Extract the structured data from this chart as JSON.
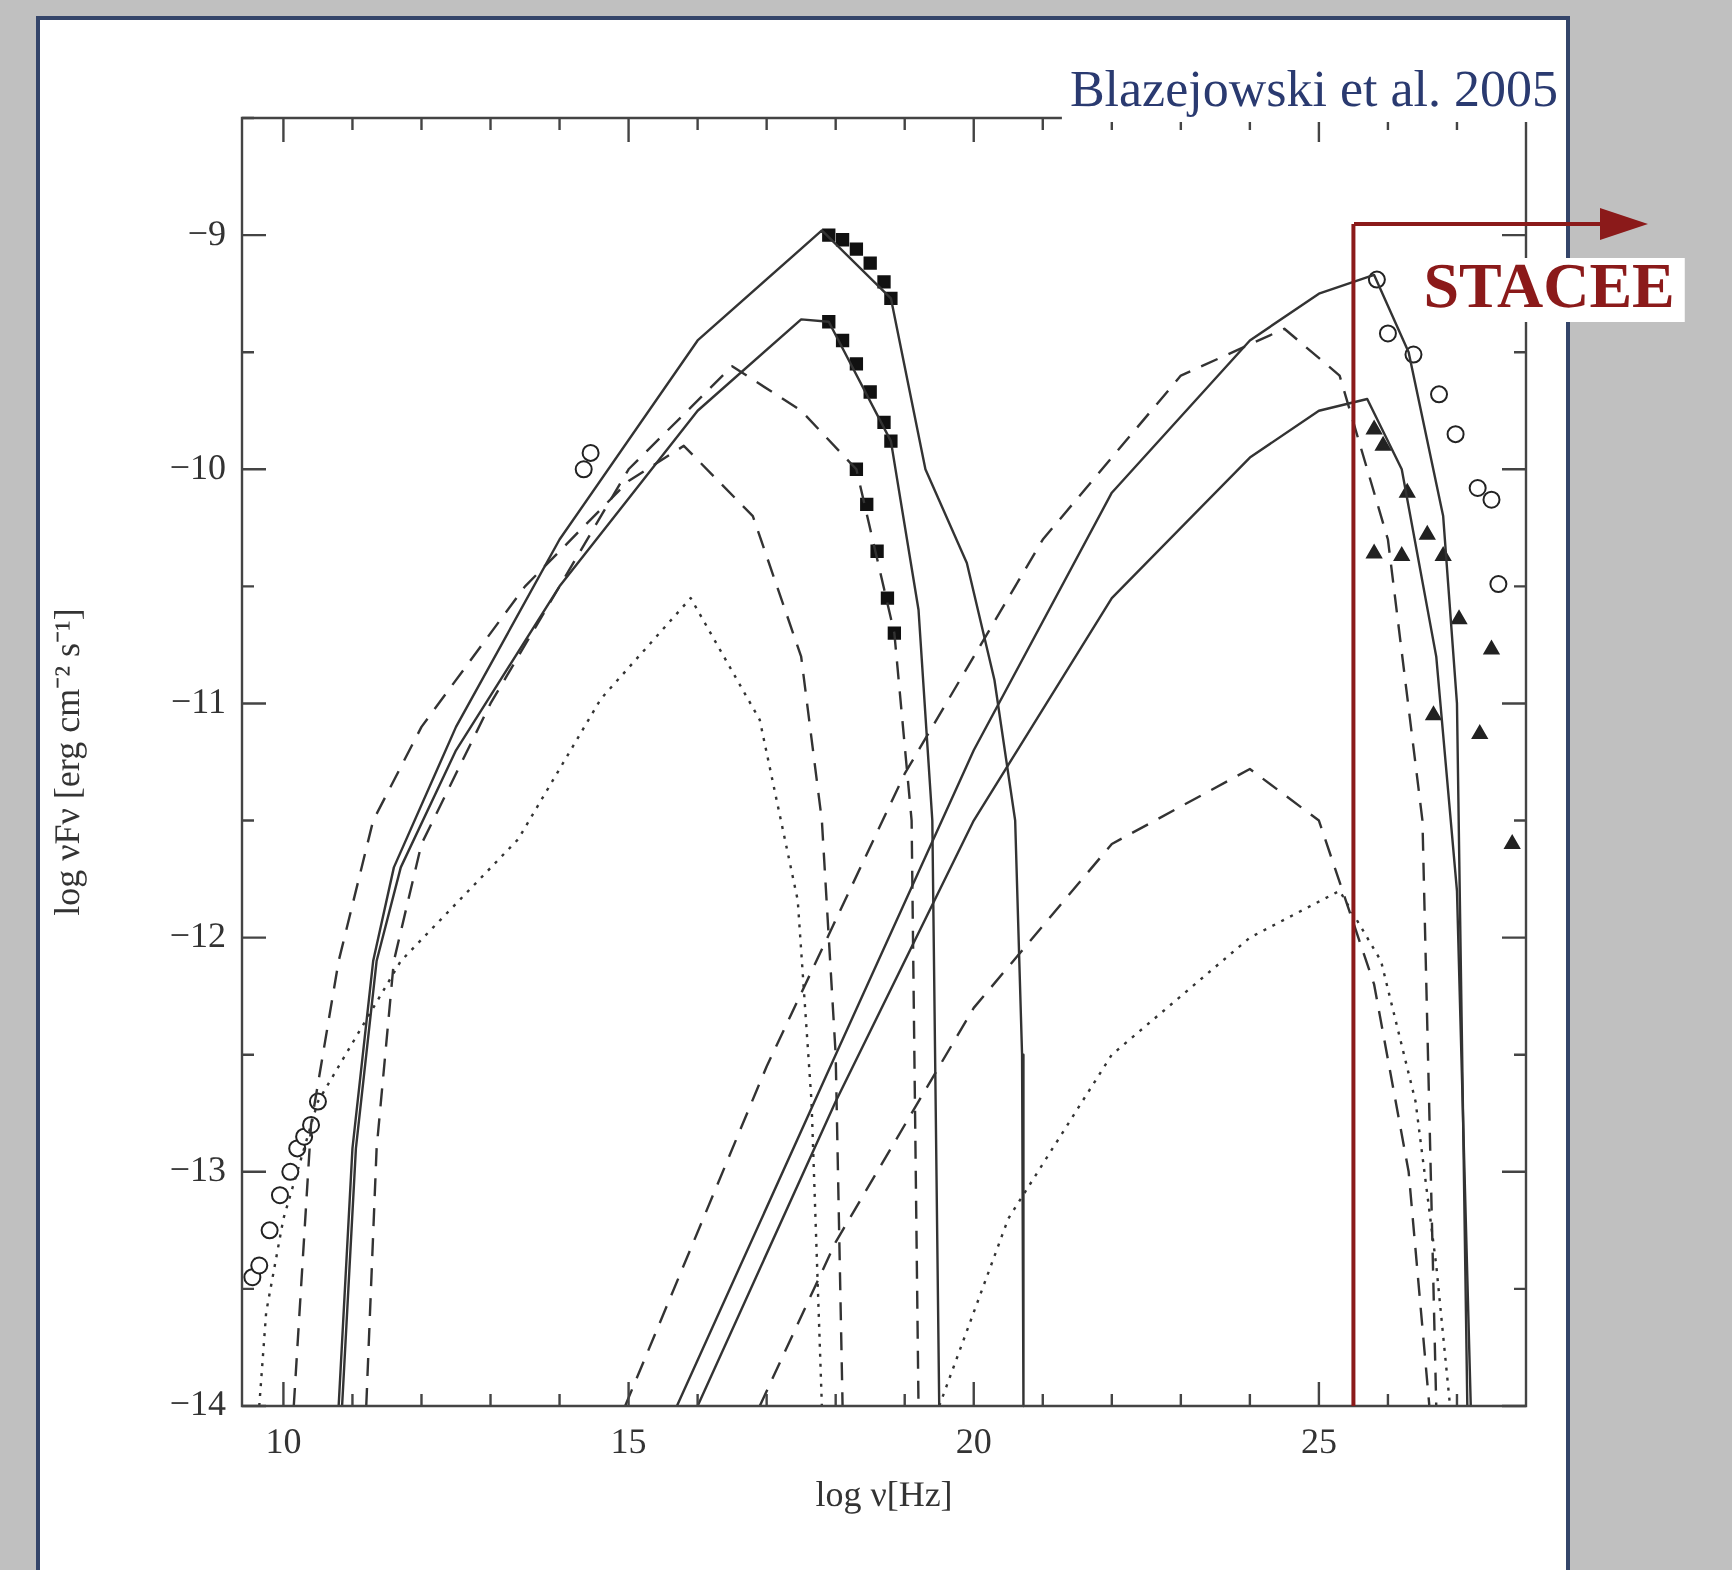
{
  "chart_data": {
    "type": "line",
    "xlabel": "log ν[Hz]",
    "ylabel": "log νFν [erg cm⁻² s⁻¹]",
    "annotations": [
      "Blazejowski et al. 2005"
    ],
    "xlim": [
      9.4,
      28
    ],
    "ylim": [
      -14,
      -8.5
    ],
    "xticks": [
      {
        "value": 10,
        "label": "10"
      },
      {
        "value": 11,
        "label": null
      },
      {
        "value": 12,
        "label": null
      },
      {
        "value": 13,
        "label": null
      },
      {
        "value": 14,
        "label": null
      },
      {
        "value": 15,
        "label": "15"
      },
      {
        "value": 16,
        "label": null
      },
      {
        "value": 17,
        "label": null
      },
      {
        "value": 18,
        "label": null
      },
      {
        "value": 19,
        "label": null
      },
      {
        "value": 20,
        "label": "20"
      },
      {
        "value": 21,
        "label": null
      },
      {
        "value": 22,
        "label": null
      },
      {
        "value": 23,
        "label": null
      },
      {
        "value": 24,
        "label": null
      },
      {
        "value": 25,
        "label": "25"
      },
      {
        "value": 26,
        "label": null
      },
      {
        "value": 27,
        "label": null
      }
    ],
    "yticks": [
      {
        "value": -14,
        "label": "−14"
      },
      {
        "value": -13.5,
        "label": null
      },
      {
        "value": -13,
        "label": "−13"
      },
      {
        "value": -12.5,
        "label": null
      },
      {
        "value": -12,
        "label": "−12"
      },
      {
        "value": -11.5,
        "label": null
      },
      {
        "value": -11,
        "label": "−11"
      },
      {
        "value": -10.5,
        "label": null
      },
      {
        "value": -10,
        "label": "−10"
      },
      {
        "value": -9.5,
        "label": null
      },
      {
        "value": -9,
        "label": "−9"
      },
      {
        "value": -8.5,
        "label": null
      }
    ],
    "ref_lines": [
      {
        "axis": "x",
        "value": 25.5,
        "label": "STACEE",
        "color": "#8b1a1a"
      }
    ],
    "series": [
      {
        "type": "line",
        "line_style": "solid",
        "marker": "none",
        "color": "#333333",
        "x": [
          10.8,
          11.0,
          11.3,
          11.6,
          12.5,
          14,
          16,
          17.8,
          18.8,
          19.3,
          19.9,
          20.3,
          20.6,
          20.7,
          20.72
        ],
        "values": [
          -14,
          -12.9,
          -12.1,
          -11.7,
          -11.1,
          -10.3,
          -9.45,
          -8.98,
          -9.27,
          -10.0,
          -10.4,
          -10.9,
          -11.5,
          -12.5,
          -14
        ]
      },
      {
        "type": "line",
        "line_style": "solid",
        "marker": "none",
        "color": "#333333",
        "x": [
          10.85,
          11.05,
          11.35,
          11.7,
          12.5,
          14,
          16,
          17.5,
          17.9,
          18.8,
          19.2,
          19.4,
          19.5
        ],
        "values": [
          -14,
          -12.9,
          -12.1,
          -11.7,
          -11.2,
          -10.5,
          -9.75,
          -9.36,
          -9.37,
          -9.88,
          -10.6,
          -11.5,
          -14
        ]
      },
      {
        "type": "line",
        "line_style": "dashed",
        "marker": "none",
        "color": "#333333",
        "x": [
          11.2,
          11.35,
          11.6,
          12,
          13,
          15,
          16.5,
          17.5,
          18.3,
          18.85,
          19.1,
          19.2
        ],
        "values": [
          -14,
          -12.9,
          -12.1,
          -11.6,
          -11.0,
          -10.0,
          -9.56,
          -9.75,
          -10.0,
          -10.7,
          -11.5,
          -14
        ]
      },
      {
        "type": "line",
        "line_style": "dashed",
        "marker": "none",
        "color": "#333333",
        "x": [
          10.15,
          10.4,
          10.8,
          11.3,
          12,
          13.5,
          15,
          15.8,
          16.8,
          17.5,
          17.8,
          18.0,
          18.1
        ],
        "values": [
          -14,
          -12.8,
          -12.1,
          -11.5,
          -11.1,
          -10.5,
          -10.05,
          -9.9,
          -10.2,
          -10.8,
          -11.5,
          -12.5,
          -14
        ]
      },
      {
        "type": "line",
        "line_style": "dotted",
        "marker": "none",
        "color": "#333333",
        "x": [
          9.65,
          9.75,
          10.0,
          10.5,
          11.7,
          13.4,
          14.6,
          15.9,
          16.9,
          17.45,
          17.65,
          17.8
        ],
        "values": [
          -14,
          -13.6,
          -13.2,
          -12.7,
          -12.1,
          -11.58,
          -10.98,
          -10.55,
          -11.07,
          -11.84,
          -12.7,
          -14
        ]
      },
      {
        "type": "line",
        "line_style": "solid",
        "marker": "none",
        "color": "#333333",
        "x": [
          15.7,
          18,
          20,
          22,
          24,
          25.0,
          25.8,
          26.3,
          26.8,
          27.0,
          27.15
        ],
        "values": [
          -14,
          -12.5,
          -11.2,
          -10.1,
          -9.45,
          -9.25,
          -9.17,
          -9.5,
          -10.2,
          -11,
          -14
        ]
      },
      {
        "type": "line",
        "line_style": "solid",
        "marker": "none",
        "color": "#333333",
        "x": [
          16.0,
          18,
          20,
          22,
          24,
          25.0,
          25.7,
          26.2,
          26.7,
          27.0,
          27.2
        ],
        "values": [
          -14,
          -12.7,
          -11.5,
          -10.55,
          -9.95,
          -9.75,
          -9.7,
          -10.0,
          -10.8,
          -11.8,
          -14
        ]
      },
      {
        "type": "line",
        "line_style": "dashed",
        "marker": "none",
        "color": "#333333",
        "x": [
          14.95,
          17,
          19,
          21,
          23,
          24.5,
          25.3,
          26.0,
          26.5,
          26.7
        ],
        "values": [
          -14,
          -12.55,
          -11.3,
          -10.3,
          -9.6,
          -9.4,
          -9.6,
          -10.3,
          -11.5,
          -14
        ]
      },
      {
        "type": "line",
        "line_style": "dashed",
        "marker": "none",
        "color": "#333333",
        "x": [
          16.9,
          18,
          20,
          22,
          24.0,
          25,
          25.8,
          26.3,
          26.6
        ],
        "values": [
          -14,
          -13.3,
          -12.3,
          -11.6,
          -11.28,
          -11.5,
          -12.2,
          -13,
          -14
        ]
      },
      {
        "type": "line",
        "line_style": "dotted",
        "marker": "none",
        "color": "#333333",
        "x": [
          19.5,
          20.5,
          22,
          24,
          25.3,
          25.9,
          26.4,
          26.7,
          26.9
        ],
        "values": [
          -14,
          -13.2,
          -12.5,
          -12.0,
          -11.8,
          -12.1,
          -12.7,
          -13.4,
          -14
        ]
      },
      {
        "type": "scatter",
        "marker": "circle",
        "color": "#222222",
        "x": [
          9.55,
          9.65,
          9.8,
          9.95,
          10.1,
          10.2,
          10.3,
          10.4,
          10.5,
          14.35,
          14.45,
          25.84,
          26.0,
          26.37,
          26.74,
          26.98,
          27.3,
          27.5,
          27.6
        ],
        "values": [
          -13.45,
          -13.4,
          -13.25,
          -13.1,
          -13.0,
          -12.9,
          -12.85,
          -12.8,
          -12.7,
          -10.0,
          -9.93,
          -9.19,
          -9.42,
          -9.51,
          -9.68,
          -9.85,
          -10.08,
          -10.13,
          -10.49
        ]
      },
      {
        "type": "scatter",
        "marker": "square",
        "color": "#111111",
        "x": [
          17.9,
          18.1,
          18.3,
          18.5,
          18.7,
          18.8,
          17.9,
          18.1,
          18.3,
          18.5,
          18.7,
          18.8,
          18.3,
          18.45,
          18.6,
          18.75,
          18.85
        ],
        "values": [
          -9.0,
          -9.02,
          -9.06,
          -9.12,
          -9.2,
          -9.27,
          -9.37,
          -9.45,
          -9.55,
          -9.67,
          -9.8,
          -9.88,
          -10.0,
          -10.15,
          -10.35,
          -10.55,
          -10.7
        ]
      },
      {
        "type": "scatter",
        "marker": "triangle",
        "color": "#222222",
        "x": [
          25.8,
          25.93,
          26.28,
          26.57,
          26.8,
          25.8,
          26.2,
          27.03,
          27.5,
          27.33,
          26.66,
          27.8
        ],
        "values": [
          -9.83,
          -9.9,
          -10.1,
          -10.28,
          -10.37,
          -10.36,
          -10.37,
          -10.64,
          -10.77,
          -11.13,
          -11.05,
          -11.6
        ]
      }
    ]
  }
}
